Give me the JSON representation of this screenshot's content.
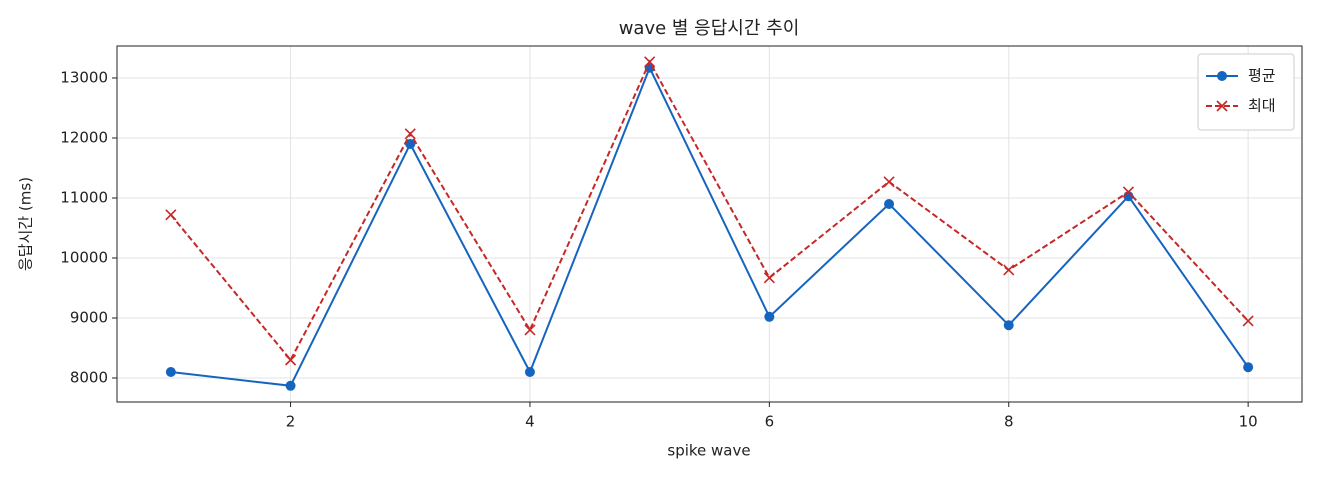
{
  "chart_data": {
    "type": "line",
    "title": "wave 별 응답시간 추이",
    "x_label": "spike wave",
    "y_label": "응답시간 (ms)",
    "x": [
      1,
      2,
      3,
      4,
      5,
      6,
      7,
      8,
      9,
      10
    ],
    "series": [
      {
        "name": "평균",
        "color": "#1565c0",
        "marker": "circle",
        "linestyle": "solid",
        "values": [
          8100,
          7870,
          11900,
          8100,
          13170,
          9020,
          10900,
          8880,
          11030,
          8180
        ]
      },
      {
        "name": "최대",
        "color": "#c62828",
        "marker": "x",
        "linestyle": "dashed",
        "values": [
          10720,
          8300,
          12070,
          8800,
          13270,
          9670,
          11270,
          9800,
          11100,
          8950
        ]
      }
    ],
    "xlim": [
      0.55,
      10.45
    ],
    "xticks": [
      2,
      4,
      6,
      8,
      10
    ],
    "ylim": [
      7600,
      13533
    ],
    "yticks": [
      8000,
      9000,
      10000,
      11000,
      12000,
      13000
    ],
    "grid": true,
    "legend": "upper right"
  }
}
